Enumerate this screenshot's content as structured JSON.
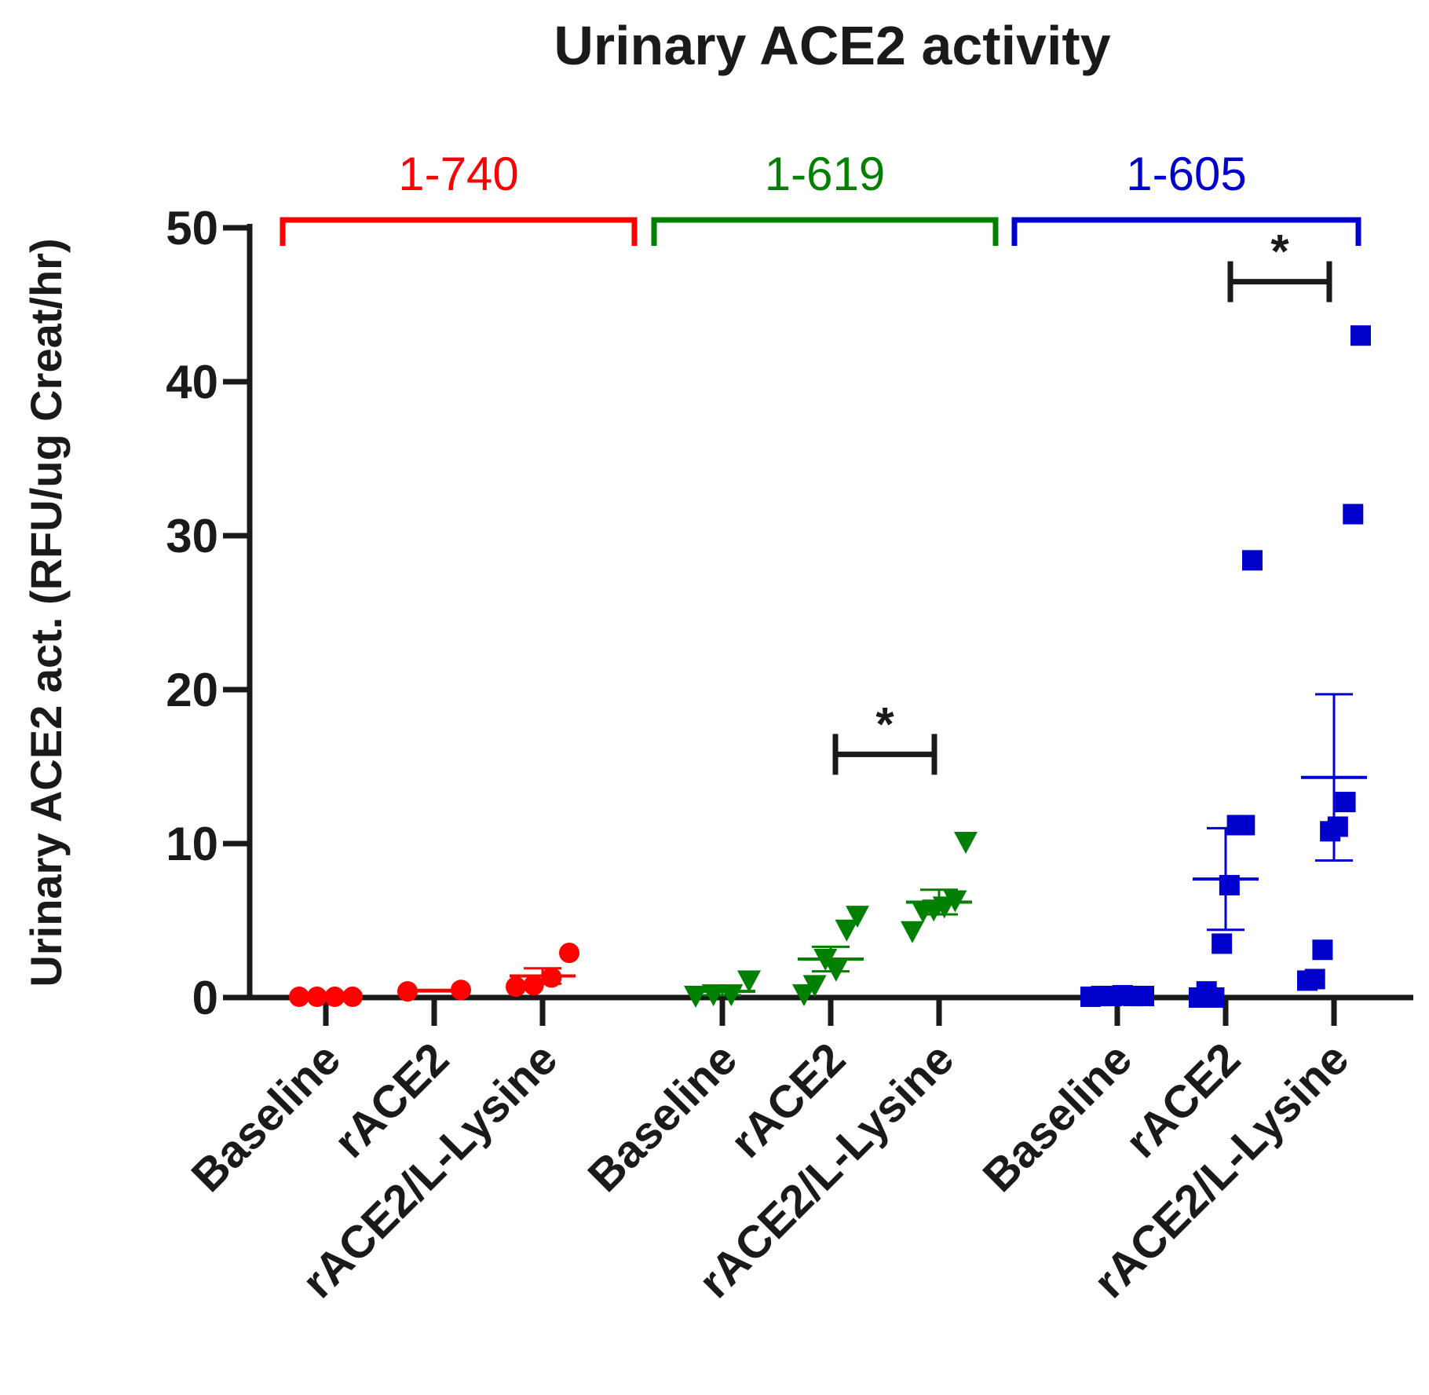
{
  "chart_data": {
    "type": "scatter",
    "title": "Urinary ACE2 activity",
    "ylabel": "Urinary ACE2 act. (RFU/ug Creat/hr)",
    "xlabel": "",
    "ylim": [
      0,
      50
    ],
    "yticks": [
      "0",
      "10",
      "20",
      "30",
      "40",
      "50"
    ],
    "groups": [
      {
        "name": "1-740",
        "color": "#ff0000",
        "marker": "circle",
        "conditions": [
          {
            "label": "Baseline",
            "values": [
              0.05,
              0.05,
              0.05,
              0.05
            ],
            "mean": 0.05,
            "sem": 0.0
          },
          {
            "label": "rACE2",
            "values": [
              0.4,
              0.5
            ],
            "mean": 0.45,
            "sem": 0.05
          },
          {
            "label": "rACE2/L-Lysine",
            "values": [
              0.7,
              0.8,
              1.3,
              2.9
            ],
            "mean": 1.4,
            "sem": 0.5
          }
        ]
      },
      {
        "name": "1-619",
        "color": "#008000",
        "marker": "triangle-down",
        "conditions": [
          {
            "label": "Baseline",
            "values": [
              0.1,
              0.2,
              0.2,
              1.1
            ],
            "mean": 0.4,
            "sem": 0.25
          },
          {
            "label": "rACE2",
            "values": [
              0.2,
              0.8,
              2.5,
              1.8,
              4.4,
              5.3
            ],
            "mean": 2.5,
            "sem": 0.8
          },
          {
            "label": "rACE2/L-Lysine",
            "values": [
              4.3,
              5.6,
              5.7,
              5.9,
              6.3,
              10.1
            ],
            "mean": 6.2,
            "sem": 0.8
          }
        ]
      },
      {
        "name": "1-605",
        "color": "#0000cc",
        "marker": "square",
        "conditions": [
          {
            "label": "Baseline",
            "values": [
              0.05,
              0.1,
              0.1,
              0.15,
              0.1,
              0.1
            ],
            "mean": 0.1,
            "sem": 0.02
          },
          {
            "label": "rACE2",
            "values": [
              0.0,
              0.4,
              0.0,
              3.5,
              7.3,
              11.2,
              11.2,
              28.4
            ],
            "mean": 7.7,
            "sem": 3.3
          },
          {
            "label": "rACE2/L-Lysine",
            "values": [
              1.1,
              1.2,
              3.1,
              10.8,
              11.1,
              12.7,
              31.4,
              43.0
            ],
            "mean": 14.3,
            "sem": 5.4
          }
        ]
      }
    ],
    "significance": [
      {
        "group": "1-619",
        "from": "rACE2",
        "to": "rACE2/L-Lysine",
        "y": 15.8,
        "label": "*"
      },
      {
        "group": "1-605",
        "from": "rACE2",
        "to": "rACE2/L-Lysine",
        "y": 46.5,
        "label": "*"
      }
    ]
  }
}
